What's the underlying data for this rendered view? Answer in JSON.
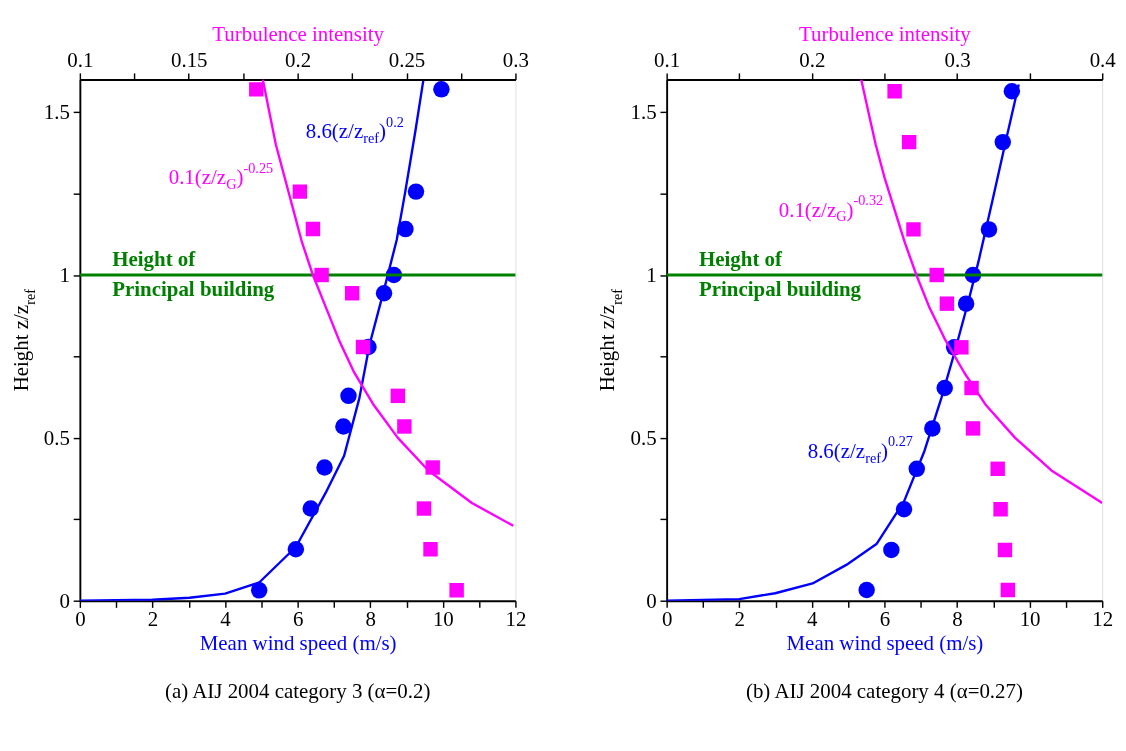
{
  "chart_data": [
    {
      "type": "scatter",
      "xlabel": "Mean wind speed (m/s)",
      "x2label": "Turbulence intensity",
      "ylabel": "Height z/z$_{ref}$",
      "xlim": [
        0,
        12
      ],
      "xticks": [
        0,
        {
          "value": 1,
          "label": null
        },
        2,
        {
          "value": 3,
          "label": null
        },
        4,
        {
          "value": 5,
          "label": null
        },
        6,
        {
          "value": 7,
          "label": null
        },
        8,
        {
          "value": 9,
          "label": null
        },
        10,
        {
          "value": 11,
          "label": null
        },
        12
      ],
      "x2lim": [
        0.1,
        0.3
      ],
      "x2ticks": [
        0.1,
        {
          "value": 0.125,
          "label": null
        },
        0.15,
        {
          "value": 0.175,
          "label": null
        },
        0.2,
        {
          "value": 0.225,
          "label": null
        },
        0.25,
        {
          "value": 0.275,
          "label": null
        },
        0.3
      ],
      "ylim": [
        0,
        1.6
      ],
      "yticks": [
        0,
        {
          "value": 0.25,
          "label": null
        },
        0.5,
        {
          "value": 0.75,
          "label": null
        },
        1,
        {
          "value": 1.25,
          "label": null
        },
        1.5
      ],
      "series": [
        {
          "marker": "circle",
          "color": "#0000ff",
          "x": [
            9.96,
            9.26,
            8.97,
            8.65,
            8.38,
            7.95,
            7.4,
            7.26,
            6.74,
            6.36,
            5.95,
            4.94
          ],
          "values": [
            1.57,
            1.256,
            1.141,
            1.0,
            0.944,
            0.779,
            0.629,
            0.535,
            0.409,
            0.283,
            0.158,
            0.032
          ]
        },
        {
          "marker": "square",
          "color": "#ff00ff",
          "axis": "x2",
          "x": [
            0.181,
            0.201,
            0.207,
            0.211,
            0.225,
            0.23,
            0.246,
            0.249,
            0.262,
            0.258,
            0.261,
            0.273
          ],
          "values": [
            1.57,
            1.256,
            1.141,
            1.0,
            0.944,
            0.779,
            0.629,
            0.535,
            0.409,
            0.283,
            0.158,
            0.032
          ]
        },
        {
          "name": "8.6(z/z$_{ref}$)$^{0.2}$",
          "type": "line",
          "color": "#0000ff",
          "x": [
            0,
            2.0,
            3.02,
            4.0,
            4.94,
            5.95,
            6.77,
            7.28,
            7.7,
            7.98,
            8.35,
            8.73,
            8.96,
            9.24,
            9.46
          ],
          "values": [
            0,
            0.003,
            0.009,
            0.022,
            0.056,
            0.165,
            0.331,
            0.445,
            0.622,
            0.786,
            0.942,
            1.108,
            1.253,
            1.44,
            1.596
          ]
        },
        {
          "name": "0.1(z/z$_{G}$)$^{-0.25}$",
          "type": "line",
          "color": "#ff00ff",
          "axis": "x2",
          "x": [
            0.299,
            0.28,
            0.26,
            0.246,
            0.235,
            0.226,
            0.219,
            0.213,
            0.207,
            0.202,
            0.198,
            0.194,
            0.19,
            0.187,
            0.184
          ],
          "values": [
            0.23,
            0.3,
            0.4,
            0.5,
            0.6,
            0.7,
            0.8,
            0.9,
            1.0,
            1.1,
            1.2,
            1.3,
            1.4,
            1.5,
            1.6
          ]
        }
      ],
      "ref_lines": [
        {
          "axis": "y",
          "value": 1,
          "label": "Height of\nPrincipal building",
          "color": "#008000"
        }
      ],
      "annotations": [
        "(a) AIJ 2004 category 3 (α=0.2)"
      ],
      "legend": false,
      "grid": false
    },
    {
      "type": "scatter",
      "xlabel": "Mean wind speed (m/s)",
      "x2label": "Turbulence intensity",
      "ylabel": "Height z/z$_{ref}$",
      "xlim": [
        0,
        12
      ],
      "xticks": [
        0,
        {
          "value": 1,
          "label": null
        },
        2,
        {
          "value": 3,
          "label": null
        },
        4,
        {
          "value": 5,
          "label": null
        },
        6,
        {
          "value": 7,
          "label": null
        },
        8,
        {
          "value": 9,
          "label": null
        },
        10,
        {
          "value": 11,
          "label": null
        },
        12
      ],
      "x2lim": [
        0.1,
        0.4
      ],
      "x2ticks": [
        0.1,
        {
          "value": 0.15,
          "label": null
        },
        0.2,
        {
          "value": 0.25,
          "label": null
        },
        0.3,
        {
          "value": 0.35,
          "label": null
        },
        0.4
      ],
      "ylim": [
        0,
        1.6
      ],
      "yticks": [
        0,
        {
          "value": 0.25,
          "label": null
        },
        0.5,
        {
          "value": 0.75,
          "label": null
        },
        1,
        {
          "value": 1.25,
          "label": null
        },
        1.5
      ],
      "series": [
        {
          "marker": "circle",
          "color": "#0000ff",
          "x": [
            9.51,
            9.26,
            8.88,
            8.44,
            8.25,
            7.92,
            7.66,
            7.32,
            6.89,
            6.54,
            6.19,
            5.51
          ],
          "values": [
            1.564,
            1.408,
            1.14,
            1.0,
            0.912,
            0.778,
            0.653,
            0.529,
            0.405,
            0.281,
            0.156,
            0.033
          ]
        },
        {
          "marker": "square",
          "color": "#ff00ff",
          "axis": "x2",
          "x": [
            0.257,
            0.267,
            0.27,
            0.286,
            0.293,
            0.303,
            0.31,
            0.311,
            0.328,
            0.33,
            0.333,
            0.335
          ],
          "values": [
            1.564,
            1.408,
            1.14,
            1.0,
            0.912,
            0.778,
            0.653,
            0.529,
            0.405,
            0.281,
            0.156,
            0.033
          ]
        },
        {
          "name": "8.6(z/z$_{ref}$)$^{0.27}$",
          "type": "line",
          "color": "#0000ff",
          "x": [
            0,
            2.0,
            2.99,
            4.02,
            4.95,
            5.79,
            6.54,
            7.1,
            7.57,
            7.94,
            8.31,
            8.59,
            8.97,
            9.34,
            9.7
          ],
          "values": [
            0,
            0.005,
            0.023,
            0.053,
            0.11,
            0.175,
            0.305,
            0.459,
            0.623,
            0.766,
            0.918,
            1.041,
            1.226,
            1.41,
            1.585
          ]
        },
        {
          "name": "0.1(z/z$_{G}$)$^{-0.32}$",
          "type": "line",
          "color": "#ff00ff",
          "axis": "x2",
          "x": [
            0.4,
            0.365,
            0.34,
            0.32,
            0.305,
            0.292,
            0.281,
            0.272,
            0.264,
            0.257,
            0.25,
            0.244,
            0.239,
            0.234
          ],
          "values": [
            0.3,
            0.4,
            0.5,
            0.6,
            0.7,
            0.8,
            0.9,
            1.0,
            1.1,
            1.2,
            1.3,
            1.4,
            1.5,
            1.6
          ]
        }
      ],
      "ref_lines": [
        {
          "axis": "y",
          "value": 1,
          "label": "Height of\nPrincipal building",
          "color": "#008000"
        }
      ],
      "annotations": [
        "(b) AIJ 2004 category 4 (α=0.27)"
      ],
      "legend": false,
      "grid": false
    }
  ]
}
